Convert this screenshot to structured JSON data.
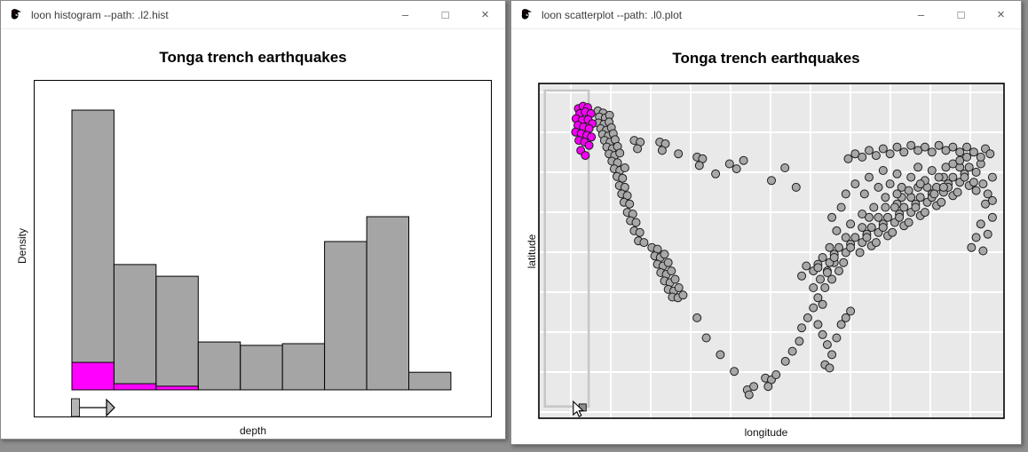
{
  "desktop": {
    "background_color": "#8f8f8f"
  },
  "windows": {
    "histogram": {
      "title": "loon histogram --path: .l2.hist",
      "icon": "loon-bird-icon",
      "buttons": {
        "minimize": "–",
        "maximize": "□",
        "close": "×"
      }
    },
    "scatterplot": {
      "title": "loon scatterplot --path: .l0.plot",
      "icon": "loon-bird-icon",
      "buttons": {
        "minimize": "–",
        "maximize": "□",
        "close": "×"
      }
    }
  },
  "chart_data": [
    {
      "type": "bar",
      "id": "histogram",
      "title": "Tonga trench earthquakes",
      "xlabel": "depth",
      "ylabel": "Density",
      "tick_labels": "none visible on either axis",
      "n_bins": 9,
      "values_rel": [
        1.0,
        0.448,
        0.406,
        0.171,
        0.159,
        0.165,
        0.53,
        0.619,
        0.063
      ],
      "selected_rel": [
        0.098,
        0.022,
        0.013,
        0,
        0,
        0,
        0,
        0,
        0
      ],
      "bar_color": "#a5a5a5",
      "selected_color": "#ff00ff",
      "outline_color": "#000000",
      "pan_arrow": {
        "present": true,
        "direction": "right"
      }
    },
    {
      "type": "scatter",
      "id": "scatterplot",
      "title": "Tonga trench earthquakes",
      "xlabel": "longitude",
      "ylabel": "latitude",
      "grid": true,
      "legend": "none",
      "plot_bg": "#e9e9e9",
      "grid_color": "#ffffff",
      "point_color": "#a8a8a8",
      "point_outline": "#1c1c1c",
      "selected_color": "#f202f2",
      "selection_rect_frac": {
        "x": 0.013,
        "y": 0.021,
        "w": 0.094,
        "h": 0.944
      },
      "square_point_frac": [
        0.094,
        0.968
      ],
      "cursor_frac": [
        0.074,
        0.95
      ],
      "points_frac_note": "point coordinates are fractions of the plot panel, x left-to-right, y top-to-bottom",
      "selected_points": [
        [
          0.085,
          0.075
        ],
        [
          0.095,
          0.068
        ],
        [
          0.105,
          0.072
        ],
        [
          0.088,
          0.09
        ],
        [
          0.1,
          0.085
        ],
        [
          0.112,
          0.09
        ],
        [
          0.08,
          0.105
        ],
        [
          0.093,
          0.11
        ],
        [
          0.106,
          0.108
        ],
        [
          0.115,
          0.12
        ],
        [
          0.084,
          0.125
        ],
        [
          0.096,
          0.13
        ],
        [
          0.108,
          0.135
        ],
        [
          0.079,
          0.145
        ],
        [
          0.091,
          0.15
        ],
        [
          0.103,
          0.155
        ],
        [
          0.113,
          0.16
        ],
        [
          0.086,
          0.17
        ],
        [
          0.098,
          0.175
        ],
        [
          0.108,
          0.185
        ],
        [
          0.09,
          0.2
        ],
        [
          0.1,
          0.215
        ]
      ],
      "points": [
        [
          0.127,
          0.082
        ],
        [
          0.138,
          0.088
        ],
        [
          0.13,
          0.1
        ],
        [
          0.143,
          0.103
        ],
        [
          0.152,
          0.095
        ],
        [
          0.128,
          0.118
        ],
        [
          0.14,
          0.122
        ],
        [
          0.151,
          0.115
        ],
        [
          0.133,
          0.135
        ],
        [
          0.145,
          0.14
        ],
        [
          0.156,
          0.132
        ],
        [
          0.137,
          0.152
        ],
        [
          0.149,
          0.157
        ],
        [
          0.16,
          0.15
        ],
        [
          0.141,
          0.17
        ],
        [
          0.153,
          0.175
        ],
        [
          0.164,
          0.168
        ],
        [
          0.146,
          0.19
        ],
        [
          0.158,
          0.195
        ],
        [
          0.169,
          0.188
        ],
        [
          0.151,
          0.21
        ],
        [
          0.163,
          0.215
        ],
        [
          0.174,
          0.208
        ],
        [
          0.157,
          0.232
        ],
        [
          0.169,
          0.237
        ],
        [
          0.162,
          0.255
        ],
        [
          0.174,
          0.26
        ],
        [
          0.185,
          0.252
        ],
        [
          0.168,
          0.278
        ],
        [
          0.18,
          0.283
        ],
        [
          0.173,
          0.305
        ],
        [
          0.185,
          0.31
        ],
        [
          0.178,
          0.33
        ],
        [
          0.19,
          0.335
        ],
        [
          0.183,
          0.355
        ],
        [
          0.195,
          0.36
        ],
        [
          0.19,
          0.385
        ],
        [
          0.202,
          0.39
        ],
        [
          0.197,
          0.41
        ],
        [
          0.209,
          0.415
        ],
        [
          0.205,
          0.44
        ],
        [
          0.217,
          0.445
        ],
        [
          0.214,
          0.47
        ],
        [
          0.226,
          0.475
        ],
        [
          0.243,
          0.49
        ],
        [
          0.255,
          0.495
        ],
        [
          0.249,
          0.515
        ],
        [
          0.261,
          0.52
        ],
        [
          0.27,
          0.51
        ],
        [
          0.255,
          0.54
        ],
        [
          0.267,
          0.545
        ],
        [
          0.278,
          0.535
        ],
        [
          0.262,
          0.565
        ],
        [
          0.274,
          0.57
        ],
        [
          0.285,
          0.56
        ],
        [
          0.27,
          0.59
        ],
        [
          0.282,
          0.595
        ],
        [
          0.293,
          0.585
        ],
        [
          0.278,
          0.615
        ],
        [
          0.29,
          0.62
        ],
        [
          0.301,
          0.61
        ],
        [
          0.287,
          0.638
        ],
        [
          0.299,
          0.64
        ],
        [
          0.31,
          0.632
        ],
        [
          0.205,
          0.17
        ],
        [
          0.218,
          0.175
        ],
        [
          0.212,
          0.195
        ],
        [
          0.26,
          0.175
        ],
        [
          0.272,
          0.18
        ],
        [
          0.265,
          0.2
        ],
        [
          0.3,
          0.21
        ],
        [
          0.34,
          0.22
        ],
        [
          0.352,
          0.225
        ],
        [
          0.345,
          0.245
        ],
        [
          0.38,
          0.27
        ],
        [
          0.41,
          0.24
        ],
        [
          0.425,
          0.255
        ],
        [
          0.44,
          0.23
        ],
        [
          0.34,
          0.7
        ],
        [
          0.36,
          0.76
        ],
        [
          0.39,
          0.81
        ],
        [
          0.42,
          0.86
        ],
        [
          0.448,
          0.915
        ],
        [
          0.462,
          0.905
        ],
        [
          0.452,
          0.93
        ],
        [
          0.487,
          0.88
        ],
        [
          0.5,
          0.885
        ],
        [
          0.493,
          0.905
        ],
        [
          0.51,
          0.87
        ],
        [
          0.53,
          0.83
        ],
        [
          0.545,
          0.8
        ],
        [
          0.56,
          0.77
        ],
        [
          0.565,
          0.73
        ],
        [
          0.578,
          0.7
        ],
        [
          0.59,
          0.67
        ],
        [
          0.6,
          0.64
        ],
        [
          0.59,
          0.61
        ],
        [
          0.605,
          0.585
        ],
        [
          0.615,
          0.61
        ],
        [
          0.62,
          0.56
        ],
        [
          0.63,
          0.585
        ],
        [
          0.635,
          0.535
        ],
        [
          0.645,
          0.56
        ],
        [
          0.61,
          0.66
        ],
        [
          0.5,
          0.29
        ],
        [
          0.529,
          0.252
        ],
        [
          0.553,
          0.31
        ],
        [
          0.575,
          0.545
        ],
        [
          0.59,
          0.56
        ],
        [
          0.565,
          0.575
        ],
        [
          0.6,
          0.54
        ],
        [
          0.61,
          0.52
        ],
        [
          0.625,
          0.535
        ],
        [
          0.6,
          0.55
        ],
        [
          0.635,
          0.51
        ],
        [
          0.62,
          0.565
        ],
        [
          0.645,
          0.49
        ],
        [
          0.66,
          0.505
        ],
        [
          0.635,
          0.52
        ],
        [
          0.67,
          0.48
        ],
        [
          0.655,
          0.535
        ],
        [
          0.625,
          0.49
        ],
        [
          0.68,
          0.46
        ],
        [
          0.695,
          0.475
        ],
        [
          0.67,
          0.49
        ],
        [
          0.705,
          0.45
        ],
        [
          0.69,
          0.505
        ],
        [
          0.66,
          0.46
        ],
        [
          0.715,
          0.485
        ],
        [
          0.715,
          0.43
        ],
        [
          0.73,
          0.445
        ],
        [
          0.705,
          0.46
        ],
        [
          0.74,
          0.42
        ],
        [
          0.725,
          0.475
        ],
        [
          0.695,
          0.43
        ],
        [
          0.75,
          0.455
        ],
        [
          0.71,
          0.4
        ],
        [
          0.75,
          0.4
        ],
        [
          0.765,
          0.415
        ],
        [
          0.74,
          0.43
        ],
        [
          0.775,
          0.39
        ],
        [
          0.76,
          0.445
        ],
        [
          0.73,
          0.4
        ],
        [
          0.785,
          0.425
        ],
        [
          0.745,
          0.37
        ],
        [
          0.77,
          0.36
        ],
        [
          0.785,
          0.37
        ],
        [
          0.8,
          0.385
        ],
        [
          0.775,
          0.4
        ],
        [
          0.81,
          0.36
        ],
        [
          0.795,
          0.415
        ],
        [
          0.765,
          0.37
        ],
        [
          0.82,
          0.395
        ],
        [
          0.78,
          0.34
        ],
        [
          0.82,
          0.34
        ],
        [
          0.835,
          0.355
        ],
        [
          0.81,
          0.37
        ],
        [
          0.845,
          0.33
        ],
        [
          0.83,
          0.385
        ],
        [
          0.8,
          0.34
        ],
        [
          0.855,
          0.365
        ],
        [
          0.815,
          0.31
        ],
        [
          0.855,
          0.31
        ],
        [
          0.87,
          0.325
        ],
        [
          0.845,
          0.34
        ],
        [
          0.88,
          0.3
        ],
        [
          0.865,
          0.355
        ],
        [
          0.835,
          0.31
        ],
        [
          0.89,
          0.335
        ],
        [
          0.89,
          0.28
        ],
        [
          0.905,
          0.295
        ],
        [
          0.88,
          0.31
        ],
        [
          0.915,
          0.27
        ],
        [
          0.9,
          0.325
        ],
        [
          0.87,
          0.28
        ],
        [
          0.925,
          0.305
        ],
        [
          0.925,
          0.25
        ],
        [
          0.94,
          0.265
        ],
        [
          0.915,
          0.28
        ],
        [
          0.95,
          0.24
        ],
        [
          0.935,
          0.295
        ],
        [
          0.905,
          0.25
        ],
        [
          0.63,
          0.4
        ],
        [
          0.65,
          0.37
        ],
        [
          0.66,
          0.33
        ],
        [
          0.68,
          0.3
        ],
        [
          0.7,
          0.33
        ],
        [
          0.71,
          0.28
        ],
        [
          0.73,
          0.31
        ],
        [
          0.74,
          0.26
        ],
        [
          0.755,
          0.3
        ],
        [
          0.77,
          0.27
        ],
        [
          0.78,
          0.31
        ],
        [
          0.8,
          0.28
        ],
        [
          0.815,
          0.25
        ],
        [
          0.83,
          0.29
        ],
        [
          0.845,
          0.26
        ],
        [
          0.86,
          0.28
        ],
        [
          0.875,
          0.25
        ],
        [
          0.89,
          0.24
        ],
        [
          0.905,
          0.23
        ],
        [
          0.92,
          0.22
        ],
        [
          0.64,
          0.44
        ],
        [
          0.67,
          0.42
        ],
        [
          0.695,
          0.39
        ],
        [
          0.72,
          0.37
        ],
        [
          0.745,
          0.34
        ],
        [
          0.77,
          0.33
        ],
        [
          0.795,
          0.32
        ],
        [
          0.82,
          0.3
        ],
        [
          0.85,
          0.33
        ],
        [
          0.87,
          0.31
        ],
        [
          0.665,
          0.225
        ],
        [
          0.68,
          0.21
        ],
        [
          0.695,
          0.22
        ],
        [
          0.71,
          0.2
        ],
        [
          0.725,
          0.215
        ],
        [
          0.74,
          0.195
        ],
        [
          0.755,
          0.21
        ],
        [
          0.77,
          0.19
        ],
        [
          0.785,
          0.205
        ],
        [
          0.8,
          0.185
        ],
        [
          0.815,
          0.2
        ],
        [
          0.83,
          0.19
        ],
        [
          0.845,
          0.205
        ],
        [
          0.86,
          0.185
        ],
        [
          0.875,
          0.2
        ],
        [
          0.89,
          0.19
        ],
        [
          0.905,
          0.205
        ],
        [
          0.92,
          0.19
        ],
        [
          0.935,
          0.205
        ],
        [
          0.95,
          0.22
        ],
        [
          0.96,
          0.195
        ],
        [
          0.97,
          0.21
        ],
        [
          0.94,
          0.32
        ],
        [
          0.955,
          0.3
        ],
        [
          0.965,
          0.33
        ],
        [
          0.975,
          0.28
        ],
        [
          0.96,
          0.36
        ],
        [
          0.975,
          0.4
        ],
        [
          0.95,
          0.42
        ],
        [
          0.965,
          0.45
        ],
        [
          0.94,
          0.46
        ],
        [
          0.93,
          0.49
        ],
        [
          0.955,
          0.5
        ],
        [
          0.975,
          0.35
        ],
        [
          0.6,
          0.72
        ],
        [
          0.61,
          0.75
        ],
        [
          0.62,
          0.78
        ],
        [
          0.63,
          0.81
        ],
        [
          0.615,
          0.84
        ],
        [
          0.64,
          0.76
        ],
        [
          0.65,
          0.72
        ],
        [
          0.66,
          0.7
        ],
        [
          0.67,
          0.68
        ],
        [
          0.625,
          0.85
        ]
      ]
    }
  ]
}
